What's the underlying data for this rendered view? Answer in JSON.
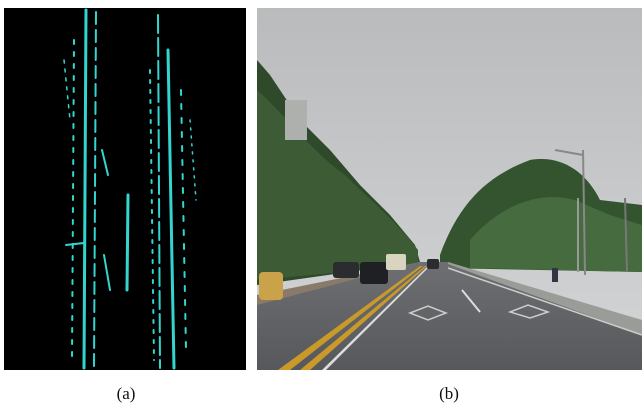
{
  "figure": {
    "panels": [
      {
        "label": "(a)"
      },
      {
        "label": "(b)"
      }
    ]
  }
}
